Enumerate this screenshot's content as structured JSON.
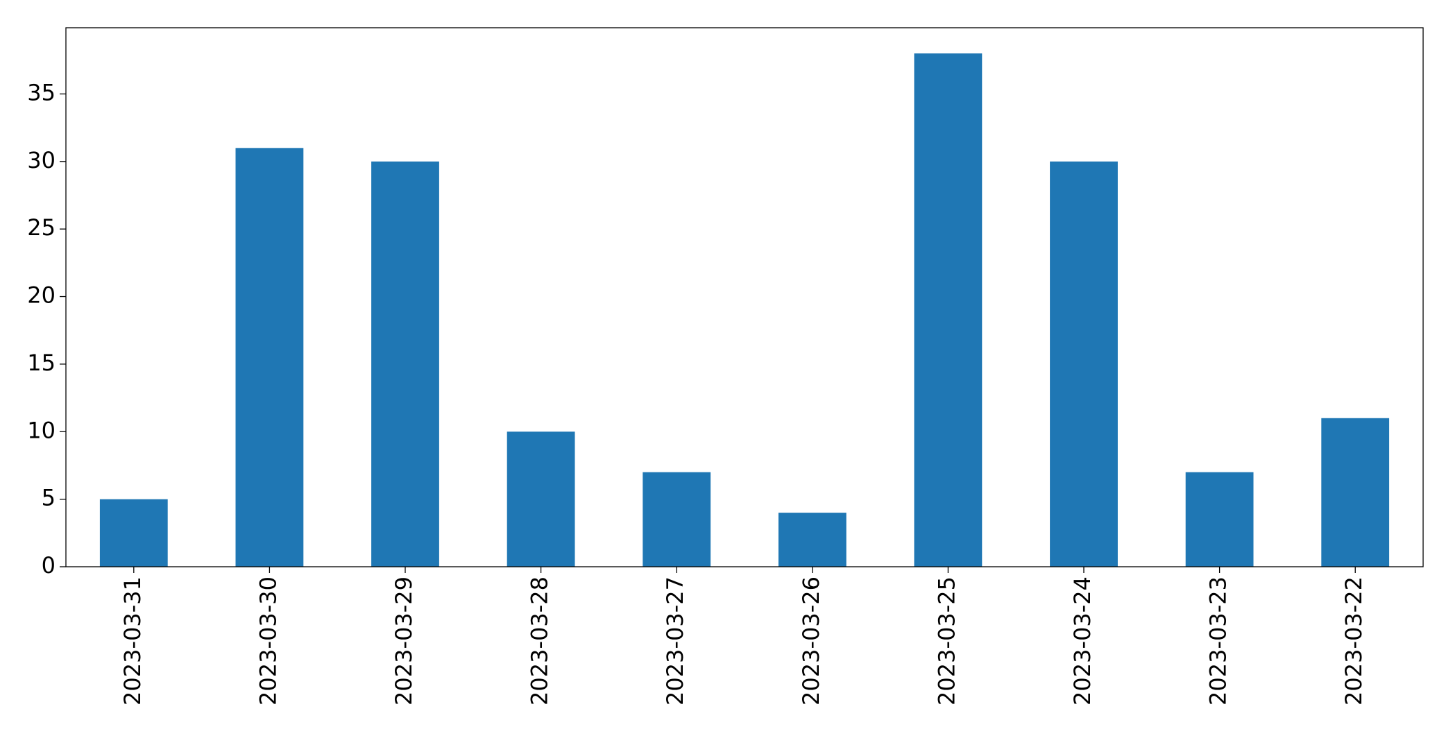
{
  "chart_data": {
    "type": "bar",
    "categories": [
      "2023-03-31",
      "2023-03-30",
      "2023-03-29",
      "2023-03-28",
      "2023-03-27",
      "2023-03-26",
      "2023-03-25",
      "2023-03-24",
      "2023-03-23",
      "2023-03-22"
    ],
    "values": [
      5,
      31,
      30,
      10,
      7,
      4,
      38,
      30,
      7,
      11
    ],
    "color": "#1f77b4",
    "ylim": [
      0,
      39.9
    ],
    "yticks": [
      0,
      5,
      10,
      15,
      20,
      25,
      30,
      35
    ],
    "grid": false
  }
}
